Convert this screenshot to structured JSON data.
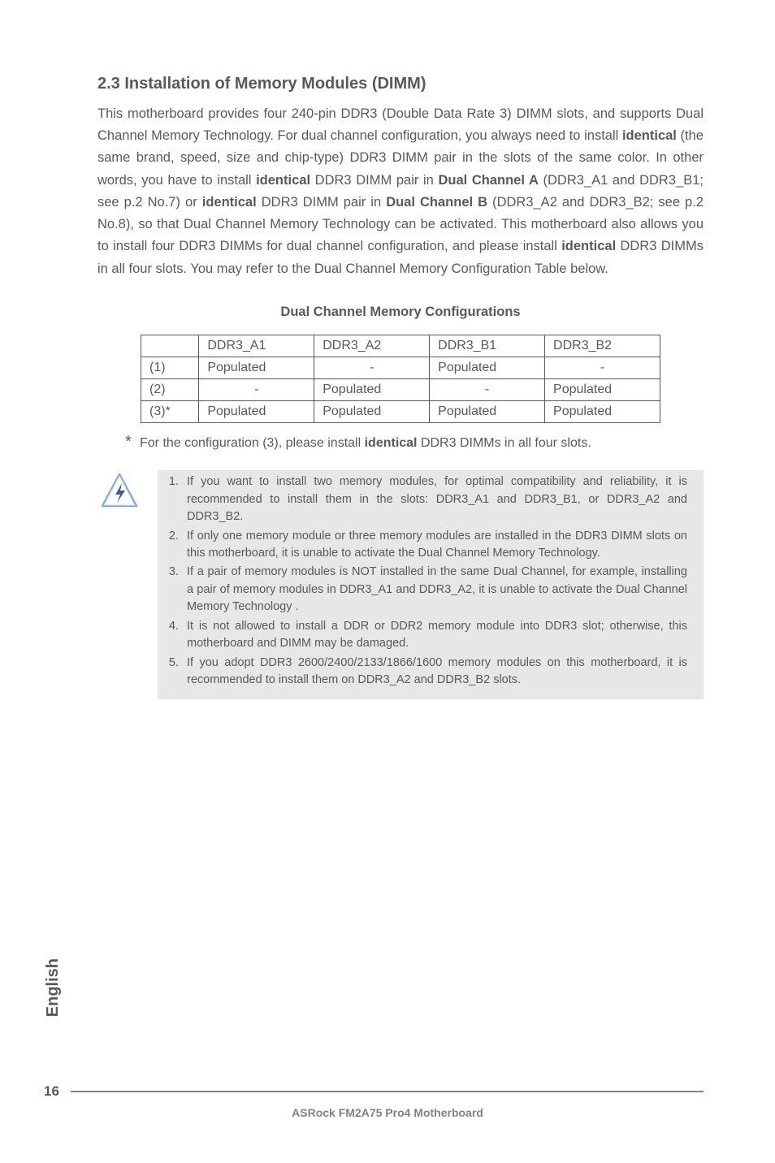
{
  "heading": "2.3  Installation of Memory Modules (DIMM)",
  "body_p1_html": "This motherboard provides four 240-pin DDR3 (Double Data Rate 3) DIMM slots, and supports Dual Channel Memory Technology. For dual channel configuration, you always need to install <b>identical</b> (the same brand, speed, size and chip-type) DDR3 DIMM pair in the slots of the same color. In other words, you have to install <b>identical</b> DDR3 DIMM pair in <b>Dual Channel A</b> (DDR3_A1 and DDR3_B1; see p.2 No.7) or <b>identical</b> DDR3 DIMM pair in <b>Dual Channel B</b> (DDR3_A2 and DDR3_B2; see p.2 No.8), so that Dual Channel Memory Technology can be activated. This motherboard also allows you to install four DDR3 DIMMs for dual channel configuration, and please install <b>identical</b> DDR3 DIMMs in all four slots. You may refer to the Dual Channel Memory Configuration Table below.",
  "table": {
    "title": "Dual Channel Memory Configurations",
    "headers": [
      "",
      "DDR3_A1",
      "DDR3_A2",
      "DDR3_B1",
      "DDR3_B2"
    ],
    "rows": [
      {
        "label": "(1)",
        "cells": [
          "Populated",
          "-",
          "Populated",
          "-"
        ],
        "align": [
          "left",
          "center",
          "left",
          "center"
        ]
      },
      {
        "label": "(2)",
        "cells": [
          "-",
          "Populated",
          "-",
          "Populated"
        ],
        "align": [
          "center",
          "left",
          "center",
          "left"
        ]
      },
      {
        "label": "(3)*",
        "cells": [
          "Populated",
          "Populated",
          "Populated",
          "Populated"
        ],
        "align": [
          "left",
          "left",
          "left",
          "left"
        ]
      }
    ]
  },
  "footnote_html": "For the configuration (3), please install <b>identical</b> DDR3 DIMMs in all four slots.",
  "notes": [
    "If you want to install two memory modules, for optimal compatibility and reliability, it is recommended to install them in the slots: DDR3_A1 and DDR3_B1, or DDR3_A2 and DDR3_B2.",
    "If only one memory module or three memory modules are installed in the DDR3 DIMM slots on this motherboard, it is unable to activate the Dual Channel Memory Technology.",
    "If a pair of memory modules is NOT installed in the same Dual Channel, for example, installing a pair of memory modules in DDR3_A1 and DDR3_A2, it is unable to activate the Dual Channel Memory Technology .",
    "It is not allowed to install a DDR or DDR2 memory module into DDR3 slot; otherwise, this motherboard and DIMM may be damaged.",
    "If you adopt DDR3 2600/2400/2133/1866/1600 memory modules on this motherboard, it is recommended to install them on DDR3_A2 and DDR3_B2 slots."
  ],
  "note_icon": {
    "stroke": "#7da7d9",
    "fill": "#ffffff",
    "bolt": "#3b5998"
  },
  "side_tab": "English",
  "page_number": "16",
  "footer_text": "ASRock  FM2A75 Pro4  Motherboard"
}
